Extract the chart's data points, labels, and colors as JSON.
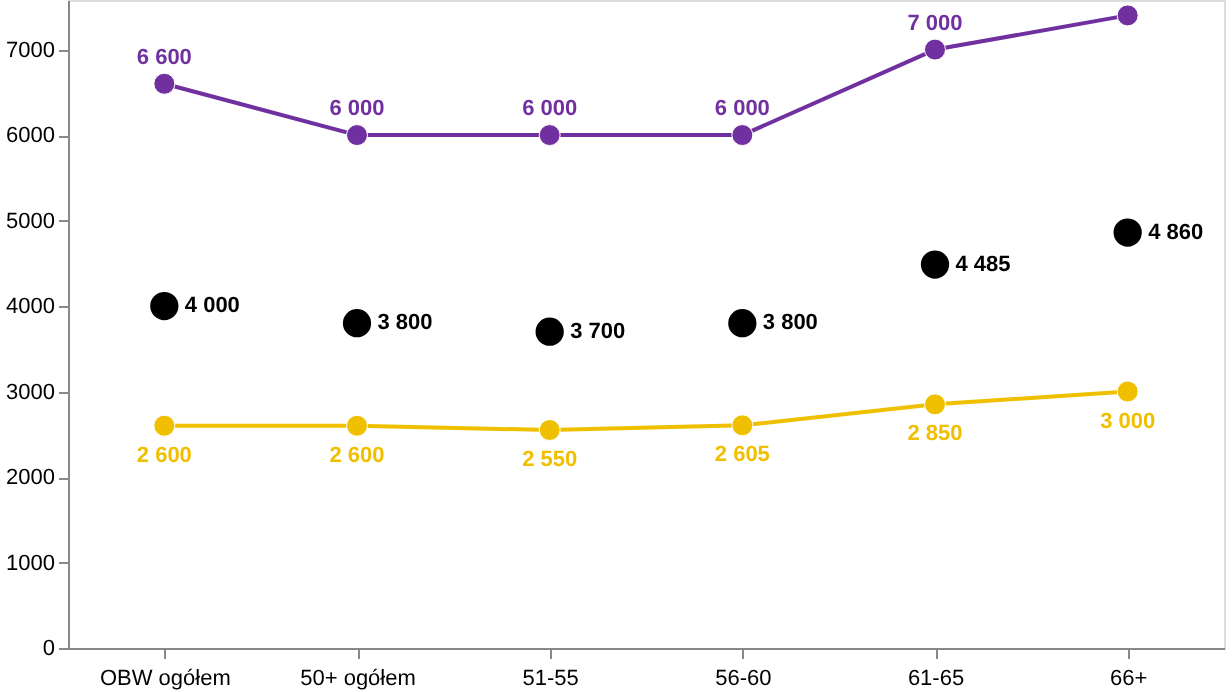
{
  "chart_data": {
    "type": "line",
    "categories": [
      "OBW ogółem",
      "50+ ogółem",
      "51-55",
      "56-60",
      "61-65",
      "66+"
    ],
    "series": [
      {
        "type": "line",
        "color": "#7030a0",
        "values": [
          6600,
          6000,
          6000,
          6000,
          7000,
          7400
        ],
        "value_labels": [
          "6 600",
          "6 000",
          "6 000",
          "6 000",
          "7 000",
          null
        ]
      },
      {
        "type": "scatter",
        "color": "#000000",
        "values": [
          4000,
          3800,
          3700,
          3800,
          4485,
          4860
        ],
        "value_labels": [
          "4 000",
          "3 800",
          "3 700",
          "3 800",
          "4 485",
          "4 860"
        ]
      },
      {
        "type": "line",
        "color": "#f0c000",
        "values": [
          2600,
          2600,
          2550,
          2605,
          2850,
          3000
        ],
        "value_labels": [
          "2 600",
          "2 600",
          "2 550",
          "2 605",
          "2 850",
          "3 000"
        ]
      }
    ],
    "ylim": [
      0,
      7580
    ],
    "yticks": [
      0,
      1000,
      2000,
      3000,
      4000,
      5000,
      6000,
      7000
    ],
    "grid": false,
    "marker": "circle"
  }
}
